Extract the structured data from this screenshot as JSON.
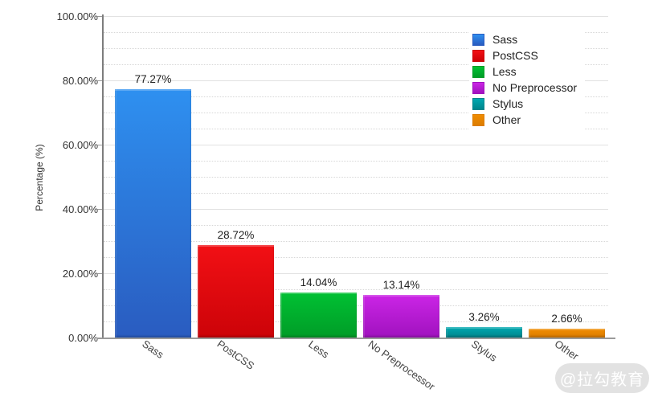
{
  "chart_data": {
    "type": "bar",
    "title": "",
    "categories": [
      "Sass",
      "PostCSS",
      "Less",
      "No Preprocessor",
      "Stylus",
      "Other"
    ],
    "values": [
      77.27,
      28.72,
      14.04,
      13.14,
      3.26,
      2.66
    ],
    "value_labels": [
      "77.27%",
      "28.72%",
      "14.04%",
      "13.14%",
      "3.26%",
      "2.66%"
    ],
    "xlabel": "",
    "ylabel": "Percentage (%)",
    "ylim": [
      0,
      100
    ],
    "y_ticks": [
      {
        "value": 0,
        "label": "0.00%"
      },
      {
        "value": 20,
        "label": "20.00%"
      },
      {
        "value": 40,
        "label": "40.00%"
      },
      {
        "value": 60,
        "label": "60.00%"
      },
      {
        "value": 80,
        "label": "80.00%"
      },
      {
        "value": 100,
        "label": "100.00%"
      }
    ],
    "y_major_step": 20,
    "y_minor_step": 5,
    "grid": {
      "major": "solid",
      "minor": "dotted"
    },
    "legend_position": "top-right",
    "series_colors": [
      {
        "name": "Sass",
        "top": "#2E90F0",
        "bottom": "#2A5CC0"
      },
      {
        "name": "PostCSS",
        "top": "#F21015",
        "bottom": "#CC0308"
      },
      {
        "name": "Less",
        "top": "#00C133",
        "bottom": "#009C27"
      },
      {
        "name": "No Preprocessor",
        "top": "#CB25E6",
        "bottom": "#A012BE"
      },
      {
        "name": "Stylus",
        "top": "#00A8B0",
        "bottom": "#00858C"
      },
      {
        "name": "Other",
        "top": "#F08C00",
        "bottom": "#DC7D02"
      }
    ]
  },
  "legend": {
    "items": [
      "Sass",
      "PostCSS",
      "Less",
      "No Preprocessor",
      "Stylus",
      "Other"
    ]
  },
  "watermark": {
    "text": "@拉勾教育"
  },
  "colors": {
    "axis_y": "#7d7d7d",
    "axis_x": "#9a9a9a",
    "grid_major": "#e2e2e2",
    "grid_minor": "#d7d7d7",
    "tick_text": "#333333",
    "value_text": "#222222",
    "watermark_bg": "#e2e2e2",
    "watermark_text": "#ffffff"
  }
}
